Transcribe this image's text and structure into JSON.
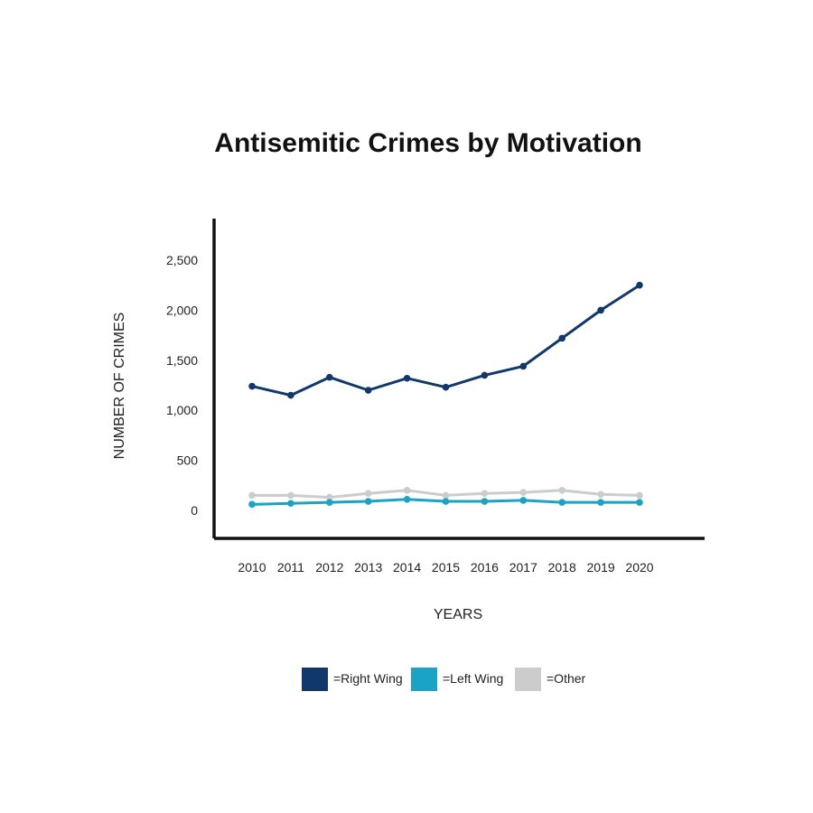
{
  "chart_data": {
    "type": "line",
    "title": "Antisemitic Crimes by Motivation",
    "xlabel": "YEARS",
    "ylabel": "NUMBER OF CRIMES",
    "categories": [
      "2010",
      "2011",
      "2012",
      "2013",
      "2014",
      "2015",
      "2016",
      "2017",
      "2018",
      "2019",
      "2020"
    ],
    "yticks": [
      {
        "value": 0,
        "label": "0"
      },
      {
        "value": 500,
        "label": "500"
      },
      {
        "value": 1000,
        "label": "1,000"
      },
      {
        "value": 1500,
        "label": "1,500"
      },
      {
        "value": 2000,
        "label": "2,000"
      },
      {
        "value": 2500,
        "label": "2,500"
      }
    ],
    "ylim": [
      -250,
      2900
    ],
    "grid": false,
    "legend_position": "bottom",
    "series": [
      {
        "name": "=Right Wing",
        "color": "#12386b",
        "values": [
          1240,
          1150,
          1330,
          1200,
          1320,
          1230,
          1350,
          1440,
          1720,
          2000,
          2250
        ]
      },
      {
        "name": "=Left Wing",
        "color": "#1ba3c6",
        "values": [
          60,
          70,
          80,
          90,
          110,
          90,
          90,
          100,
          80,
          80,
          80
        ]
      },
      {
        "name": "=Other",
        "color": "#cccccc",
        "values": [
          150,
          150,
          130,
          170,
          200,
          150,
          170,
          180,
          200,
          160,
          150
        ]
      }
    ]
  }
}
